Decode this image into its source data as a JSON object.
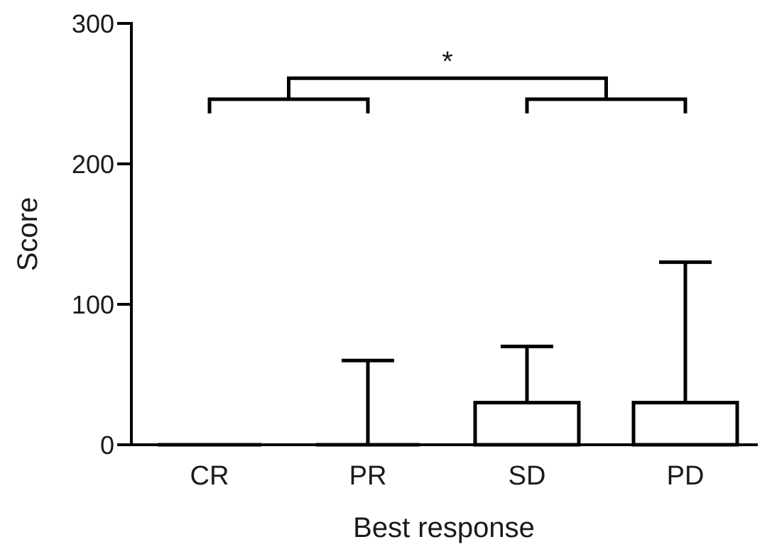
{
  "chart_data": {
    "type": "bar",
    "xlabel": "Best response",
    "ylabel": "Score",
    "ylim": [
      0,
      300
    ],
    "yticks": [
      {
        "value": 0,
        "label": "0"
      },
      {
        "value": 100,
        "label": "100"
      },
      {
        "value": 200,
        "label": "200"
      },
      {
        "value": 300,
        "label": "300"
      }
    ],
    "categories": [
      "CR",
      "PR",
      "SD",
      "PD"
    ],
    "values": [
      0,
      0,
      30,
      30
    ],
    "error_upper": [
      0,
      60,
      70,
      130
    ],
    "significance": {
      "label": "*",
      "groups": [
        [
          "CR",
          "PR"
        ],
        [
          "SD",
          "PD"
        ]
      ],
      "group_bracket_value": 246,
      "top_bracket_value": 261
    }
  }
}
